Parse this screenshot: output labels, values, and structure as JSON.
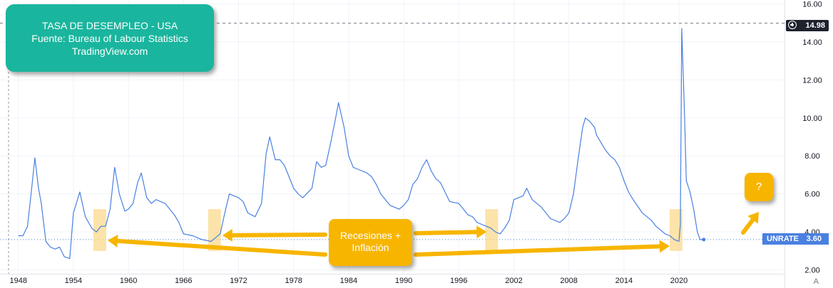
{
  "title_box": {
    "line1": "TASA DE DESEMPLEO - USA",
    "line2": "Fuente: Bureau of Labour Statistics",
    "line3": "TradingView.com"
  },
  "callout_main": {
    "line1": "Recesiones +",
    "line2": "Inflación"
  },
  "callout_question": "?",
  "price_labels": {
    "max_value": "14.98",
    "last_symbol": "UNRATE",
    "last_value": "3.60"
  },
  "axis_scale_button": "A",
  "colors": {
    "line": "#4a80e0",
    "title_box": "#1ab59e",
    "callouts": "#f7b500",
    "highlight": "#fbd98c"
  },
  "chart_data": {
    "type": "line",
    "series": [
      {
        "name": "UNRATE",
        "points": [
          [
            1948.0,
            3.8
          ],
          [
            1948.5,
            3.8
          ],
          [
            1949.0,
            4.3
          ],
          [
            1949.5,
            6.5
          ],
          [
            1949.8,
            7.9
          ],
          [
            1950.2,
            6.3
          ],
          [
            1950.5,
            5.5
          ],
          [
            1951.0,
            3.5
          ],
          [
            1951.5,
            3.2
          ],
          [
            1952.0,
            3.1
          ],
          [
            1952.5,
            3.2
          ],
          [
            1953.0,
            2.7
          ],
          [
            1953.6,
            2.6
          ],
          [
            1954.0,
            5.0
          ],
          [
            1954.7,
            6.1
          ],
          [
            1955.3,
            4.8
          ],
          [
            1956.0,
            4.2
          ],
          [
            1956.5,
            4.0
          ],
          [
            1957.0,
            4.3
          ],
          [
            1957.5,
            4.3
          ],
          [
            1958.0,
            5.2
          ],
          [
            1958.5,
            7.4
          ],
          [
            1959.0,
            6.0
          ],
          [
            1959.6,
            5.1
          ],
          [
            1960.0,
            5.2
          ],
          [
            1960.5,
            5.5
          ],
          [
            1961.0,
            6.6
          ],
          [
            1961.4,
            7.1
          ],
          [
            1962.0,
            5.8
          ],
          [
            1962.5,
            5.5
          ],
          [
            1963.0,
            5.7
          ],
          [
            1963.5,
            5.6
          ],
          [
            1964.0,
            5.5
          ],
          [
            1965.0,
            4.9
          ],
          [
            1965.5,
            4.5
          ],
          [
            1966.0,
            3.9
          ],
          [
            1967.0,
            3.8
          ],
          [
            1968.0,
            3.6
          ],
          [
            1969.0,
            3.5
          ],
          [
            1969.5,
            3.7
          ],
          [
            1970.0,
            3.9
          ],
          [
            1970.5,
            5.0
          ],
          [
            1971.0,
            6.0
          ],
          [
            1972.0,
            5.8
          ],
          [
            1972.5,
            5.6
          ],
          [
            1973.0,
            5.0
          ],
          [
            1973.8,
            4.8
          ],
          [
            1974.5,
            5.5
          ],
          [
            1975.0,
            8.1
          ],
          [
            1975.4,
            9.0
          ],
          [
            1976.0,
            7.8
          ],
          [
            1976.5,
            7.8
          ],
          [
            1977.0,
            7.5
          ],
          [
            1977.5,
            6.9
          ],
          [
            1978.0,
            6.3
          ],
          [
            1978.5,
            6.0
          ],
          [
            1979.0,
            5.8
          ],
          [
            1980.0,
            6.3
          ],
          [
            1980.5,
            7.7
          ],
          [
            1981.0,
            7.4
          ],
          [
            1981.5,
            7.5
          ],
          [
            1982.0,
            8.6
          ],
          [
            1982.5,
            9.8
          ],
          [
            1982.9,
            10.8
          ],
          [
            1983.5,
            9.5
          ],
          [
            1984.0,
            8.0
          ],
          [
            1984.5,
            7.4
          ],
          [
            1985.0,
            7.3
          ],
          [
            1986.0,
            7.1
          ],
          [
            1986.5,
            6.9
          ],
          [
            1987.0,
            6.5
          ],
          [
            1987.5,
            6.0
          ],
          [
            1988.0,
            5.7
          ],
          [
            1988.5,
            5.4
          ],
          [
            1989.0,
            5.3
          ],
          [
            1989.5,
            5.2
          ],
          [
            1990.0,
            5.4
          ],
          [
            1990.5,
            5.7
          ],
          [
            1991.0,
            6.5
          ],
          [
            1991.5,
            6.8
          ],
          [
            1992.0,
            7.4
          ],
          [
            1992.5,
            7.8
          ],
          [
            1993.0,
            7.2
          ],
          [
            1993.5,
            6.8
          ],
          [
            1994.0,
            6.6
          ],
          [
            1994.5,
            6.1
          ],
          [
            1995.0,
            5.6
          ],
          [
            1996.0,
            5.5
          ],
          [
            1996.5,
            5.2
          ],
          [
            1997.0,
            4.9
          ],
          [
            1997.5,
            4.8
          ],
          [
            1998.0,
            4.5
          ],
          [
            1998.5,
            4.4
          ],
          [
            1999.0,
            4.3
          ],
          [
            1999.5,
            4.2
          ],
          [
            2000.0,
            4.0
          ],
          [
            2000.5,
            3.9
          ],
          [
            2001.0,
            4.2
          ],
          [
            2001.5,
            4.6
          ],
          [
            2002.0,
            5.7
          ],
          [
            2002.5,
            5.8
          ],
          [
            2003.0,
            5.9
          ],
          [
            2003.4,
            6.3
          ],
          [
            2004.0,
            5.7
          ],
          [
            2004.5,
            5.5
          ],
          [
            2005.0,
            5.3
          ],
          [
            2006.0,
            4.7
          ],
          [
            2006.5,
            4.6
          ],
          [
            2007.0,
            4.5
          ],
          [
            2007.5,
            4.7
          ],
          [
            2008.0,
            5.0
          ],
          [
            2008.5,
            6.0
          ],
          [
            2009.0,
            7.8
          ],
          [
            2009.5,
            9.5
          ],
          [
            2009.8,
            10.0
          ],
          [
            2010.3,
            9.8
          ],
          [
            2010.8,
            9.5
          ],
          [
            2011.0,
            9.1
          ],
          [
            2012.0,
            8.3
          ],
          [
            2012.5,
            8.0
          ],
          [
            2013.0,
            7.8
          ],
          [
            2013.5,
            7.4
          ],
          [
            2014.0,
            6.7
          ],
          [
            2014.5,
            6.1
          ],
          [
            2015.0,
            5.7
          ],
          [
            2016.0,
            5.0
          ],
          [
            2017.0,
            4.6
          ],
          [
            2017.5,
            4.3
          ],
          [
            2018.0,
            4.1
          ],
          [
            2018.5,
            3.9
          ],
          [
            2019.0,
            3.8
          ],
          [
            2019.5,
            3.6
          ],
          [
            2020.0,
            3.5
          ],
          [
            2020.15,
            4.4
          ],
          [
            2020.3,
            14.7
          ],
          [
            2020.6,
            10.2
          ],
          [
            2020.8,
            6.7
          ],
          [
            2021.2,
            6.1
          ],
          [
            2021.6,
            5.2
          ],
          [
            2022.0,
            4.0
          ],
          [
            2022.3,
            3.6
          ],
          [
            2022.7,
            3.6
          ]
        ]
      }
    ],
    "x_ticks": [
      "1948",
      "1954",
      "1960",
      "1966",
      "1972",
      "1978",
      "1984",
      "1990",
      "1996",
      "2002",
      "2008",
      "2014",
      "2020"
    ],
    "y_ticks": [
      "16.00",
      "14.00",
      "12.00",
      "10.00",
      "8.00",
      "6.00",
      "4.00",
      "2.00"
    ],
    "xlim": [
      1946.0,
      2031.5
    ],
    "ylim": [
      1.8,
      16.2
    ],
    "max_level": 14.98,
    "last_value": 3.6,
    "highlight_years": [
      1956.8,
      1969.3,
      1999.5,
      2019.6
    ],
    "grid": true,
    "legend": "none"
  }
}
